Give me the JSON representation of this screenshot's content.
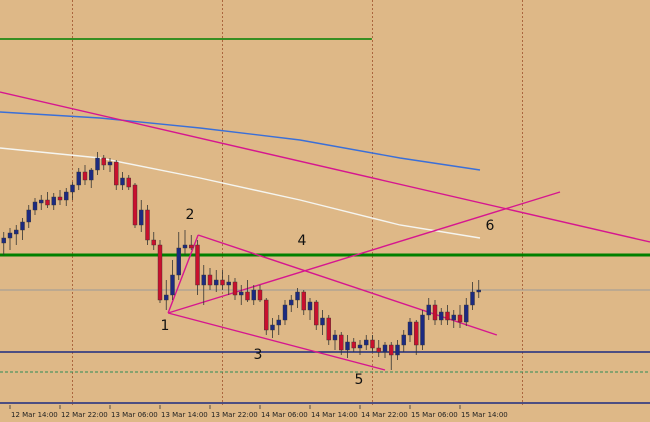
{
  "chart_data": {
    "type": "candlestick",
    "background": "#deb887",
    "up_color": "#1c2a80",
    "down_color": "#c8102e",
    "xlim": [
      -1.6,
      102.4
    ],
    "ylim": [
      410,
      0
    ],
    "xticks": [
      {
        "value": 0,
        "label": "12 Mar 14:00"
      },
      {
        "value": 8,
        "label": "12 Mar 22:00"
      },
      {
        "value": 16,
        "label": "13 Mar 06:00"
      },
      {
        "value": 24,
        "label": "13 Mar 14:00"
      },
      {
        "value": 32,
        "label": "13 Mar 22:00"
      },
      {
        "value": 40,
        "label": "14 Mar 06:00"
      },
      {
        "value": 48,
        "label": "14 Mar 14:00"
      },
      {
        "value": 56,
        "label": "14 Mar 22:00"
      },
      {
        "value": 64,
        "label": "15 Mar 06:00"
      },
      {
        "value": 72,
        "label": "15 Mar 14:00"
      }
    ],
    "separators": [
      10,
      34,
      58,
      82
    ],
    "x": [
      -1,
      0,
      1,
      2,
      3,
      4,
      5,
      6,
      7,
      8,
      9,
      10,
      11,
      12,
      13,
      14,
      15,
      16,
      17,
      18,
      19,
      20,
      21,
      22,
      23,
      24,
      25,
      26,
      27,
      28,
      29,
      30,
      31,
      32,
      33,
      34,
      35,
      36,
      37,
      38,
      39,
      40,
      41,
      42,
      43,
      44,
      45,
      46,
      47,
      48,
      49,
      50,
      51,
      52,
      53,
      54,
      55,
      56,
      57,
      58,
      59,
      60,
      61,
      62,
      63,
      64,
      65,
      66,
      67,
      68,
      69,
      70,
      71,
      72,
      73,
      74,
      75
    ],
    "candles": [
      [
        243,
        232,
        255,
        238
      ],
      [
        238,
        228,
        250,
        233
      ],
      [
        234,
        225,
        245,
        230
      ],
      [
        230,
        218,
        240,
        222
      ],
      [
        222,
        205,
        228,
        210
      ],
      [
        210,
        198,
        215,
        202
      ],
      [
        203,
        195,
        210,
        200
      ],
      [
        200,
        192,
        208,
        205
      ],
      [
        205,
        193,
        210,
        197
      ],
      [
        197,
        190,
        205,
        200
      ],
      [
        200,
        188,
        206,
        192
      ],
      [
        192,
        182,
        200,
        185
      ],
      [
        185,
        168,
        190,
        172
      ],
      [
        172,
        165,
        185,
        180
      ],
      [
        180,
        168,
        188,
        170
      ],
      [
        170,
        152,
        175,
        158
      ],
      [
        158,
        155,
        170,
        165
      ],
      [
        165,
        158,
        172,
        162
      ],
      [
        162,
        160,
        190,
        185
      ],
      [
        185,
        172,
        190,
        178
      ],
      [
        178,
        175,
        190,
        187
      ],
      [
        185,
        183,
        228,
        225
      ],
      [
        225,
        200,
        232,
        210
      ],
      [
        210,
        205,
        245,
        240
      ],
      [
        240,
        232,
        250,
        245
      ],
      [
        245,
        240,
        303,
        300
      ],
      [
        300,
        280,
        310,
        295
      ],
      [
        295,
        260,
        300,
        275
      ],
      [
        275,
        232,
        280,
        248
      ],
      [
        248,
        230,
        255,
        245
      ],
      [
        245,
        235,
        250,
        248
      ],
      [
        245,
        240,
        295,
        285
      ],
      [
        285,
        265,
        305,
        275
      ],
      [
        275,
        268,
        290,
        285
      ],
      [
        285,
        270,
        292,
        280
      ],
      [
        280,
        270,
        290,
        285
      ],
      [
        285,
        275,
        295,
        282
      ],
      [
        282,
        278,
        300,
        295
      ],
      [
        295,
        285,
        305,
        292
      ],
      [
        292,
        280,
        302,
        300
      ],
      [
        300,
        285,
        305,
        290
      ],
      [
        290,
        285,
        302,
        300
      ],
      [
        300,
        298,
        335,
        330
      ],
      [
        330,
        318,
        338,
        325
      ],
      [
        325,
        315,
        335,
        320
      ],
      [
        320,
        300,
        325,
        305
      ],
      [
        305,
        295,
        312,
        300
      ],
      [
        300,
        288,
        308,
        292
      ],
      [
        292,
        290,
        315,
        310
      ],
      [
        310,
        298,
        320,
        302
      ],
      [
        302,
        300,
        330,
        325
      ],
      [
        325,
        310,
        335,
        318
      ],
      [
        318,
        315,
        345,
        340
      ],
      [
        340,
        330,
        350,
        335
      ],
      [
        335,
        332,
        355,
        350
      ],
      [
        350,
        335,
        358,
        342
      ],
      [
        342,
        338,
        352,
        348
      ],
      [
        348,
        340,
        355,
        345
      ],
      [
        345,
        335,
        350,
        340
      ],
      [
        340,
        335,
        352,
        348
      ],
      [
        348,
        340,
        357,
        352
      ],
      [
        352,
        342,
        358,
        345
      ],
      [
        345,
        342,
        370,
        355
      ],
      [
        355,
        340,
        360,
        345
      ],
      [
        345,
        330,
        352,
        335
      ],
      [
        335,
        318,
        342,
        322
      ],
      [
        322,
        320,
        355,
        345
      ],
      [
        345,
        310,
        350,
        315
      ],
      [
        315,
        298,
        320,
        305
      ],
      [
        305,
        300,
        325,
        320
      ],
      [
        320,
        308,
        325,
        312
      ],
      [
        312,
        305,
        325,
        320
      ],
      [
        320,
        310,
        328,
        315
      ],
      [
        315,
        305,
        328,
        322
      ],
      [
        322,
        298,
        326,
        305
      ],
      [
        305,
        282,
        310,
        292
      ],
      [
        292,
        280,
        298,
        290
      ]
    ],
    "levels": [
      {
        "value": 39,
        "color": "#008000",
        "x_end": 57.9,
        "width": 1.5
      },
      {
        "value": 255,
        "color": "#008000",
        "width": 3
      },
      {
        "value": 290,
        "color": "#9a9a9a",
        "width": 1
      },
      {
        "value": 352,
        "color": "#1c2a80",
        "width": 1.5
      },
      {
        "value": 372,
        "color": "#2e8b57",
        "width": 1,
        "dashed": true
      },
      {
        "value": 403,
        "color": "#1c2a80",
        "width": 1.5
      }
    ],
    "lines": [
      {
        "color": "#3a6fd8",
        "x": [
          -1.6,
          14.4,
          30.4,
          46.4,
          62.4,
          75.2
        ],
        "y": [
          112,
          118,
          128,
          140,
          158,
          170
        ]
      },
      {
        "color": "#f5f5f0",
        "x": [
          -1.6,
          14.4,
          30.4,
          46.4,
          62.4,
          75.2
        ],
        "y": [
          148,
          158,
          178,
          200,
          225,
          238
        ]
      },
      {
        "color": "#d6168f",
        "x": [
          -1.6,
          102.4
        ],
        "y": [
          92,
          242
        ]
      },
      {
        "color": "#d6168f",
        "x": [
          30.1,
          77.9
        ],
        "y": [
          235,
          335
        ]
      },
      {
        "color": "#d6168f",
        "x": [
          25.3,
          60
        ],
        "y": [
          313,
          370
        ]
      },
      {
        "color": "#d6168f",
        "x": [
          25.3,
          88
        ],
        "y": [
          313,
          192
        ]
      },
      {
        "color": "#d6168f",
        "x": [
          25.3,
          30.1
        ],
        "y": [
          313,
          235
        ]
      }
    ],
    "annotations": [
      "1",
      "2",
      "3",
      "4",
      "5",
      "6"
    ]
  }
}
